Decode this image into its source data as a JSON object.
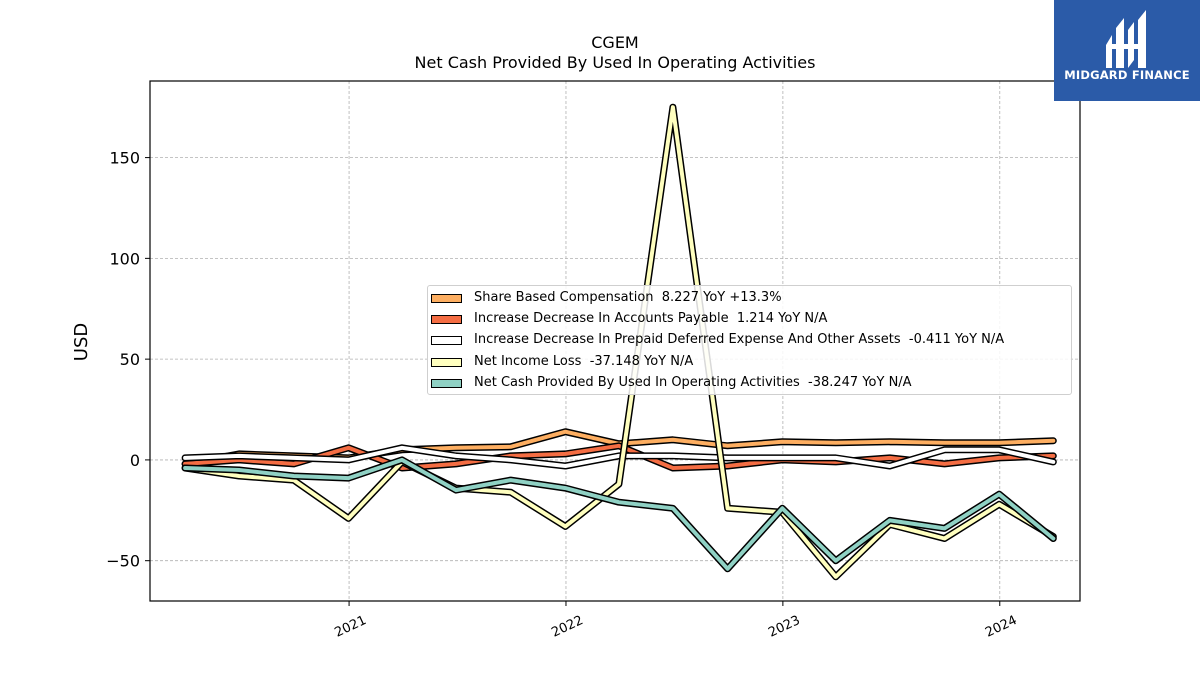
{
  "logo": {
    "text": "MIDGARD FINANCE",
    "icon": "midgard-logo-icon",
    "background": "#2b5ba8"
  },
  "chart_data": {
    "type": "line",
    "title": "CGEM",
    "subtitle": "Net Cash Provided By Used In Operating Activities",
    "xlabel": "",
    "ylabel": "USD",
    "x": [
      "2020-03-31",
      "2020-06-30",
      "2020-09-30",
      "2020-12-31",
      "2021-03-31",
      "2021-06-30",
      "2021-09-30",
      "2021-12-31",
      "2022-03-31",
      "2022-06-30",
      "2022-09-30",
      "2022-12-31",
      "2023-03-31",
      "2023-06-30",
      "2023-09-30",
      "2023-12-31",
      "2024-03-31"
    ],
    "xlim": [
      "2020-02-01",
      "2024-05-15"
    ],
    "ylim": [
      -70,
      188
    ],
    "xticks": [
      "2021",
      "2022",
      "2023",
      "2024"
    ],
    "yticks": [
      -50,
      0,
      50,
      100,
      150
    ],
    "grid": true,
    "legend_position": "center-right",
    "series": [
      {
        "name": "Share Based Compensation",
        "legend": "Share Based Compensation  8.227 YoY +13.3%",
        "color": "#fdae61",
        "values": [
          -2,
          3,
          2,
          1,
          5,
          6,
          6.5,
          14,
          8,
          10,
          7,
          9,
          8.5,
          9,
          8.5,
          8.5,
          9.5
        ]
      },
      {
        "name": "Increase Decrease In Accounts Payable",
        "legend": "Increase Decrease In Accounts Payable  1.214 YoY N/A",
        "color": "#f46d43",
        "values": [
          -2,
          0,
          -2,
          6,
          -4,
          -2,
          2,
          3,
          7,
          -4,
          -3,
          0,
          -1,
          1,
          -2,
          1,
          2
        ]
      },
      {
        "name": "Increase Decrease In Prepaid Deferred Expense And Other Assets",
        "legend": "Increase Decrease In Prepaid Deferred Expense And Other Assets  -0.411 YoY N/A",
        "color": "#ffffff",
        "values": [
          1,
          2,
          1,
          0,
          6,
          2,
          0,
          -3,
          2,
          2,
          1,
          1,
          1,
          -3,
          5,
          5,
          -1
        ]
      },
      {
        "name": "Net Income Loss",
        "legend": "Net Income Loss  -37.148 YoY N/A",
        "color": "#ffffbf",
        "values": [
          -4,
          -8,
          -10,
          -29,
          -1,
          -14,
          -16,
          -33,
          -12,
          175,
          -24,
          -26,
          -58,
          -32,
          -39,
          -22,
          -38
        ]
      },
      {
        "name": "Net Cash Provided By Used In Operating Activities",
        "legend": "Net Cash Provided By Used In Operating Activities  -38.247 YoY N/A",
        "color": "#8fd1c4",
        "values": [
          -4,
          -5,
          -8,
          -9,
          0,
          -15,
          -10,
          -14,
          -21,
          -24,
          -54,
          -24,
          -50,
          -30,
          -34,
          -17,
          -39
        ]
      }
    ]
  }
}
